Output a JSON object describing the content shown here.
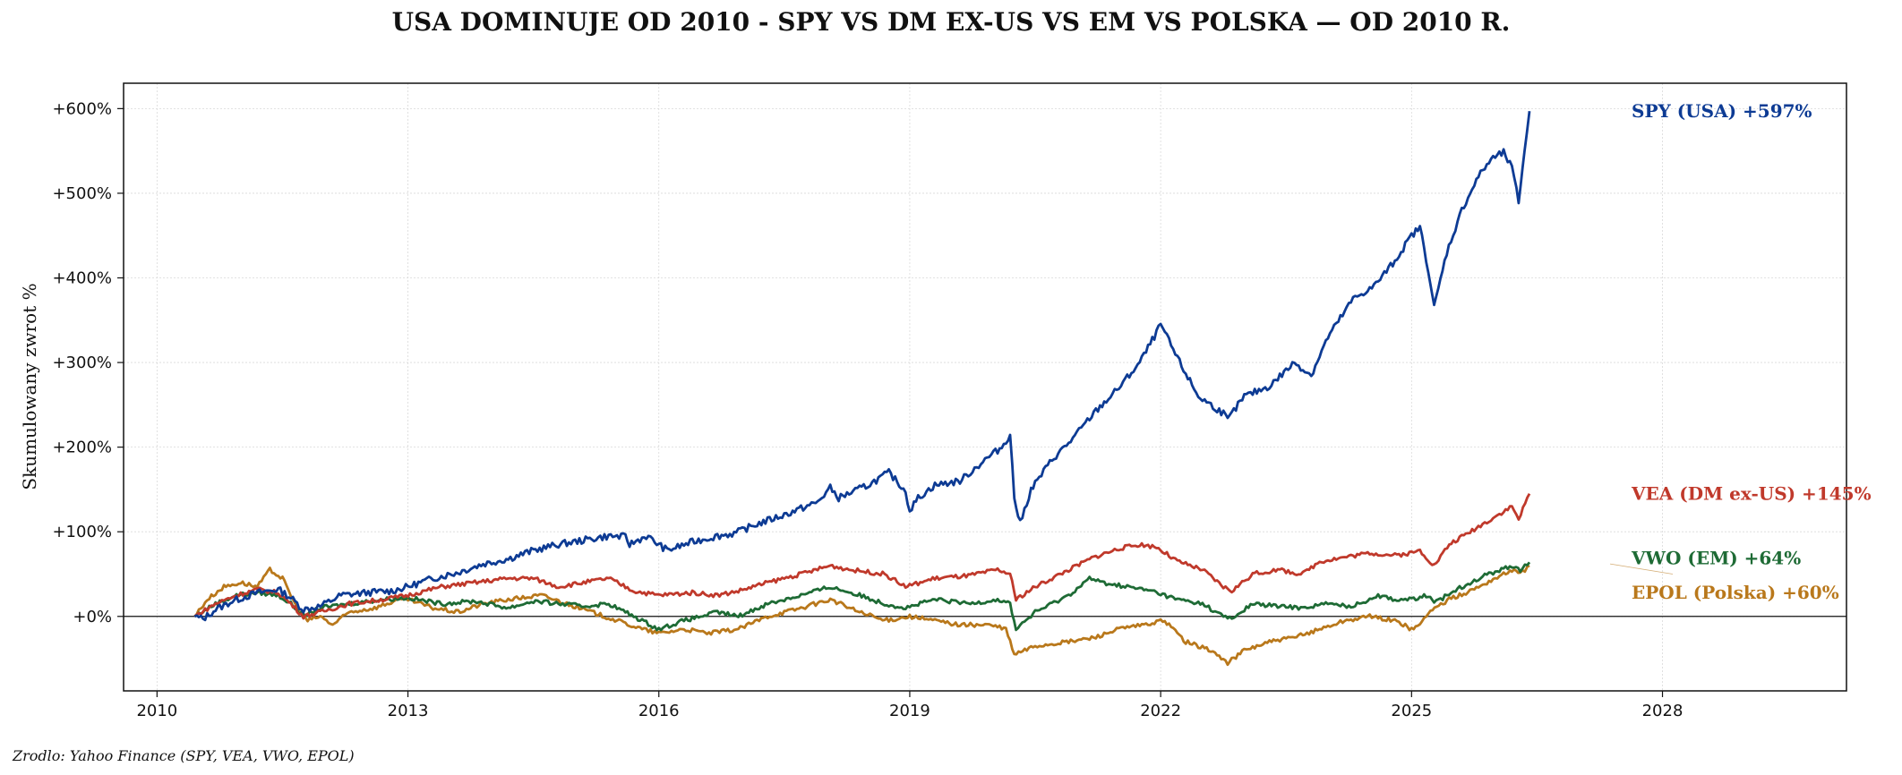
{
  "chart_data": {
    "type": "line",
    "title": "USA DOMINUJE OD 2010 - SPY VS DM EX-US VS EM VS POLSKA — OD 2010 R.",
    "ylabel": "Skumulowany zwrot %",
    "source": "Zrodlo: Yahoo Finance (SPY, VEA, VWO, EPOL)",
    "xlim": [
      2009.6,
      2030.2
    ],
    "ylim": [
      -88,
      630
    ],
    "x_ticks": [
      2010,
      2013,
      2016,
      2019,
      2022,
      2025,
      2028
    ],
    "x_tick_labels": [
      "2010",
      "2013",
      "2016",
      "2019",
      "2022",
      "2025",
      "2028"
    ],
    "y_ticks": [
      0,
      100,
      200,
      300,
      400,
      500,
      600
    ],
    "y_tick_labels": [
      "+0%",
      "+100%",
      "+200%",
      "+300%",
      "+400%",
      "+500%",
      "+600%"
    ],
    "grid": true,
    "zero_line": true,
    "series": [
      {
        "name": "SPY (USA)",
        "label": "SPY (USA)  +597%",
        "color": "#0d3b94",
        "points": [
          [
            2010.45,
            0
          ],
          [
            2010.55,
            -3
          ],
          [
            2010.7,
            8
          ],
          [
            2010.9,
            18
          ],
          [
            2011.2,
            28
          ],
          [
            2011.45,
            32
          ],
          [
            2011.6,
            22
          ],
          [
            2011.75,
            8
          ],
          [
            2011.95,
            12
          ],
          [
            2012.2,
            25
          ],
          [
            2012.5,
            28
          ],
          [
            2012.8,
            30
          ],
          [
            2013.0,
            35
          ],
          [
            2013.3,
            45
          ],
          [
            2013.6,
            52
          ],
          [
            2013.9,
            62
          ],
          [
            2014.2,
            68
          ],
          [
            2014.5,
            78
          ],
          [
            2014.8,
            85
          ],
          [
            2015.1,
            90
          ],
          [
            2015.4,
            95
          ],
          [
            2015.6,
            94
          ],
          [
            2015.65,
            85
          ],
          [
            2015.85,
            95
          ],
          [
            2016.1,
            78
          ],
          [
            2016.4,
            88
          ],
          [
            2016.7,
            95
          ],
          [
            2016.9,
            98
          ],
          [
            2017.2,
            110
          ],
          [
            2017.5,
            120
          ],
          [
            2017.9,
            135
          ],
          [
            2018.05,
            152
          ],
          [
            2018.15,
            140
          ],
          [
            2018.5,
            155
          ],
          [
            2018.75,
            170
          ],
          [
            2018.95,
            148
          ],
          [
            2019.0,
            125
          ],
          [
            2019.1,
            140
          ],
          [
            2019.3,
            155
          ],
          [
            2019.6,
            160
          ],
          [
            2019.9,
            185
          ],
          [
            2020.1,
            200
          ],
          [
            2020.2,
            215
          ],
          [
            2020.25,
            140
          ],
          [
            2020.32,
            110
          ],
          [
            2020.45,
            150
          ],
          [
            2020.7,
            185
          ],
          [
            2020.95,
            210
          ],
          [
            2021.2,
            240
          ],
          [
            2021.5,
            270
          ],
          [
            2021.75,
            300
          ],
          [
            2021.95,
            335
          ],
          [
            2022.0,
            345
          ],
          [
            2022.2,
            305
          ],
          [
            2022.45,
            260
          ],
          [
            2022.75,
            240
          ],
          [
            2022.8,
            232
          ],
          [
            2023.0,
            260
          ],
          [
            2023.3,
            272
          ],
          [
            2023.6,
            300
          ],
          [
            2023.8,
            285
          ],
          [
            2024.0,
            330
          ],
          [
            2024.3,
            375
          ],
          [
            2024.55,
            390
          ],
          [
            2024.8,
            420
          ],
          [
            2025.0,
            450
          ],
          [
            2025.1,
            460
          ],
          [
            2025.2,
            410
          ],
          [
            2025.27,
            365
          ],
          [
            2025.42,
            430
          ],
          [
            2025.6,
            480
          ],
          [
            2025.8,
            520
          ],
          [
            2025.95,
            540
          ],
          [
            2026.1,
            548
          ],
          [
            2026.2,
            530
          ],
          [
            2026.28,
            490
          ],
          [
            2026.35,
            550
          ],
          [
            2026.41,
            597
          ]
        ]
      },
      {
        "name": "VEA (DM ex-US)",
        "label": "VEA (DM ex-US)  +145%",
        "color": "#c0392b",
        "points": [
          [
            2010.45,
            0
          ],
          [
            2010.7,
            15
          ],
          [
            2010.95,
            25
          ],
          [
            2011.2,
            32
          ],
          [
            2011.45,
            28
          ],
          [
            2011.6,
            15
          ],
          [
            2011.75,
            0
          ],
          [
            2011.95,
            5
          ],
          [
            2012.3,
            15
          ],
          [
            2012.7,
            20
          ],
          [
            2013.0,
            25
          ],
          [
            2013.4,
            35
          ],
          [
            2013.8,
            40
          ],
          [
            2014.2,
            45
          ],
          [
            2014.5,
            45
          ],
          [
            2014.8,
            35
          ],
          [
            2015.1,
            40
          ],
          [
            2015.4,
            45
          ],
          [
            2015.7,
            30
          ],
          [
            2016.0,
            25
          ],
          [
            2016.4,
            28
          ],
          [
            2016.7,
            25
          ],
          [
            2016.95,
            30
          ],
          [
            2017.3,
            40
          ],
          [
            2017.7,
            50
          ],
          [
            2018.05,
            60
          ],
          [
            2018.3,
            55
          ],
          [
            2018.7,
            50
          ],
          [
            2018.95,
            35
          ],
          [
            2019.3,
            45
          ],
          [
            2019.7,
            48
          ],
          [
            2020.05,
            55
          ],
          [
            2020.2,
            50
          ],
          [
            2020.27,
            20
          ],
          [
            2020.5,
            35
          ],
          [
            2020.9,
            55
          ],
          [
            2021.2,
            70
          ],
          [
            2021.5,
            80
          ],
          [
            2021.75,
            85
          ],
          [
            2021.95,
            82
          ],
          [
            2022.2,
            65
          ],
          [
            2022.5,
            55
          ],
          [
            2022.75,
            35
          ],
          [
            2022.85,
            30
          ],
          [
            2023.1,
            50
          ],
          [
            2023.4,
            55
          ],
          [
            2023.7,
            50
          ],
          [
            2023.9,
            65
          ],
          [
            2024.2,
            70
          ],
          [
            2024.5,
            75
          ],
          [
            2024.8,
            72
          ],
          [
            2025.0,
            75
          ],
          [
            2025.1,
            78
          ],
          [
            2025.27,
            60
          ],
          [
            2025.45,
            85
          ],
          [
            2025.7,
            100
          ],
          [
            2025.95,
            115
          ],
          [
            2026.2,
            130
          ],
          [
            2026.28,
            115
          ],
          [
            2026.41,
            145
          ]
        ]
      },
      {
        "name": "VWO (EM)",
        "label": "VWO (EM)  +64%",
        "color": "#1e6b35",
        "points": [
          [
            2010.45,
            0
          ],
          [
            2010.7,
            15
          ],
          [
            2010.95,
            25
          ],
          [
            2011.2,
            28
          ],
          [
            2011.45,
            25
          ],
          [
            2011.6,
            15
          ],
          [
            2011.75,
            0
          ],
          [
            2011.95,
            10
          ],
          [
            2012.3,
            15
          ],
          [
            2012.7,
            20
          ],
          [
            2013.0,
            22
          ],
          [
            2013.4,
            15
          ],
          [
            2013.8,
            18
          ],
          [
            2014.2,
            10
          ],
          [
            2014.5,
            18
          ],
          [
            2014.8,
            15
          ],
          [
            2015.1,
            12
          ],
          [
            2015.4,
            15
          ],
          [
            2015.7,
            0
          ],
          [
            2016.0,
            -15
          ],
          [
            2016.3,
            -5
          ],
          [
            2016.7,
            5
          ],
          [
            2016.95,
            0
          ],
          [
            2017.3,
            15
          ],
          [
            2017.7,
            25
          ],
          [
            2018.05,
            35
          ],
          [
            2018.4,
            25
          ],
          [
            2018.7,
            15
          ],
          [
            2018.95,
            10
          ],
          [
            2019.3,
            20
          ],
          [
            2019.7,
            15
          ],
          [
            2020.05,
            20
          ],
          [
            2020.2,
            15
          ],
          [
            2020.27,
            -15
          ],
          [
            2020.5,
            5
          ],
          [
            2020.9,
            25
          ],
          [
            2021.15,
            45
          ],
          [
            2021.3,
            40
          ],
          [
            2021.6,
            35
          ],
          [
            2021.9,
            30
          ],
          [
            2022.2,
            20
          ],
          [
            2022.5,
            15
          ],
          [
            2022.75,
            0
          ],
          [
            2022.85,
            -3
          ],
          [
            2023.1,
            15
          ],
          [
            2023.4,
            12
          ],
          [
            2023.7,
            10
          ],
          [
            2023.95,
            15
          ],
          [
            2024.3,
            12
          ],
          [
            2024.6,
            25
          ],
          [
            2024.8,
            20
          ],
          [
            2025.0,
            20
          ],
          [
            2025.2,
            25
          ],
          [
            2025.27,
            15
          ],
          [
            2025.5,
            30
          ],
          [
            2025.8,
            45
          ],
          [
            2026.05,
            55
          ],
          [
            2026.25,
            60
          ],
          [
            2026.3,
            55
          ],
          [
            2026.41,
            64
          ]
        ]
      },
      {
        "name": "EPOL (Polska)",
        "label": "EPOL (Polska)  +60%",
        "color": "#b9781b",
        "points": [
          [
            2010.45,
            0
          ],
          [
            2010.6,
            20
          ],
          [
            2010.8,
            35
          ],
          [
            2011.0,
            40
          ],
          [
            2011.2,
            35
          ],
          [
            2011.35,
            55
          ],
          [
            2011.5,
            45
          ],
          [
            2011.65,
            15
          ],
          [
            2011.8,
            -5
          ],
          [
            2011.95,
            0
          ],
          [
            2012.1,
            -10
          ],
          [
            2012.3,
            5
          ],
          [
            2012.6,
            10
          ],
          [
            2012.9,
            20
          ],
          [
            2013.0,
            20
          ],
          [
            2013.3,
            10
          ],
          [
            2013.6,
            5
          ],
          [
            2013.9,
            15
          ],
          [
            2014.2,
            20
          ],
          [
            2014.6,
            25
          ],
          [
            2014.9,
            15
          ],
          [
            2015.2,
            5
          ],
          [
            2015.5,
            -5
          ],
          [
            2015.8,
            -15
          ],
          [
            2016.0,
            -20
          ],
          [
            2016.3,
            -15
          ],
          [
            2016.6,
            -20
          ],
          [
            2016.95,
            -15
          ],
          [
            2017.3,
            0
          ],
          [
            2017.7,
            10
          ],
          [
            2018.05,
            20
          ],
          [
            2018.4,
            5
          ],
          [
            2018.7,
            -5
          ],
          [
            2019.0,
            0
          ],
          [
            2019.3,
            -5
          ],
          [
            2019.6,
            -10
          ],
          [
            2019.95,
            -10
          ],
          [
            2020.15,
            -15
          ],
          [
            2020.25,
            -45
          ],
          [
            2020.5,
            -35
          ],
          [
            2020.9,
            -30
          ],
          [
            2021.2,
            -25
          ],
          [
            2021.5,
            -15
          ],
          [
            2021.8,
            -10
          ],
          [
            2022.05,
            -5
          ],
          [
            2022.3,
            -30
          ],
          [
            2022.6,
            -40
          ],
          [
            2022.8,
            -55
          ],
          [
            2023.0,
            -40
          ],
          [
            2023.3,
            -30
          ],
          [
            2023.6,
            -25
          ],
          [
            2023.9,
            -15
          ],
          [
            2024.2,
            -5
          ],
          [
            2024.5,
            0
          ],
          [
            2024.8,
            -5
          ],
          [
            2025.0,
            -15
          ],
          [
            2025.1,
            -10
          ],
          [
            2025.2,
            5
          ],
          [
            2025.45,
            20
          ],
          [
            2025.7,
            30
          ],
          [
            2026.0,
            45
          ],
          [
            2026.2,
            55
          ],
          [
            2026.3,
            50
          ],
          [
            2026.41,
            60
          ]
        ]
      }
    ]
  }
}
